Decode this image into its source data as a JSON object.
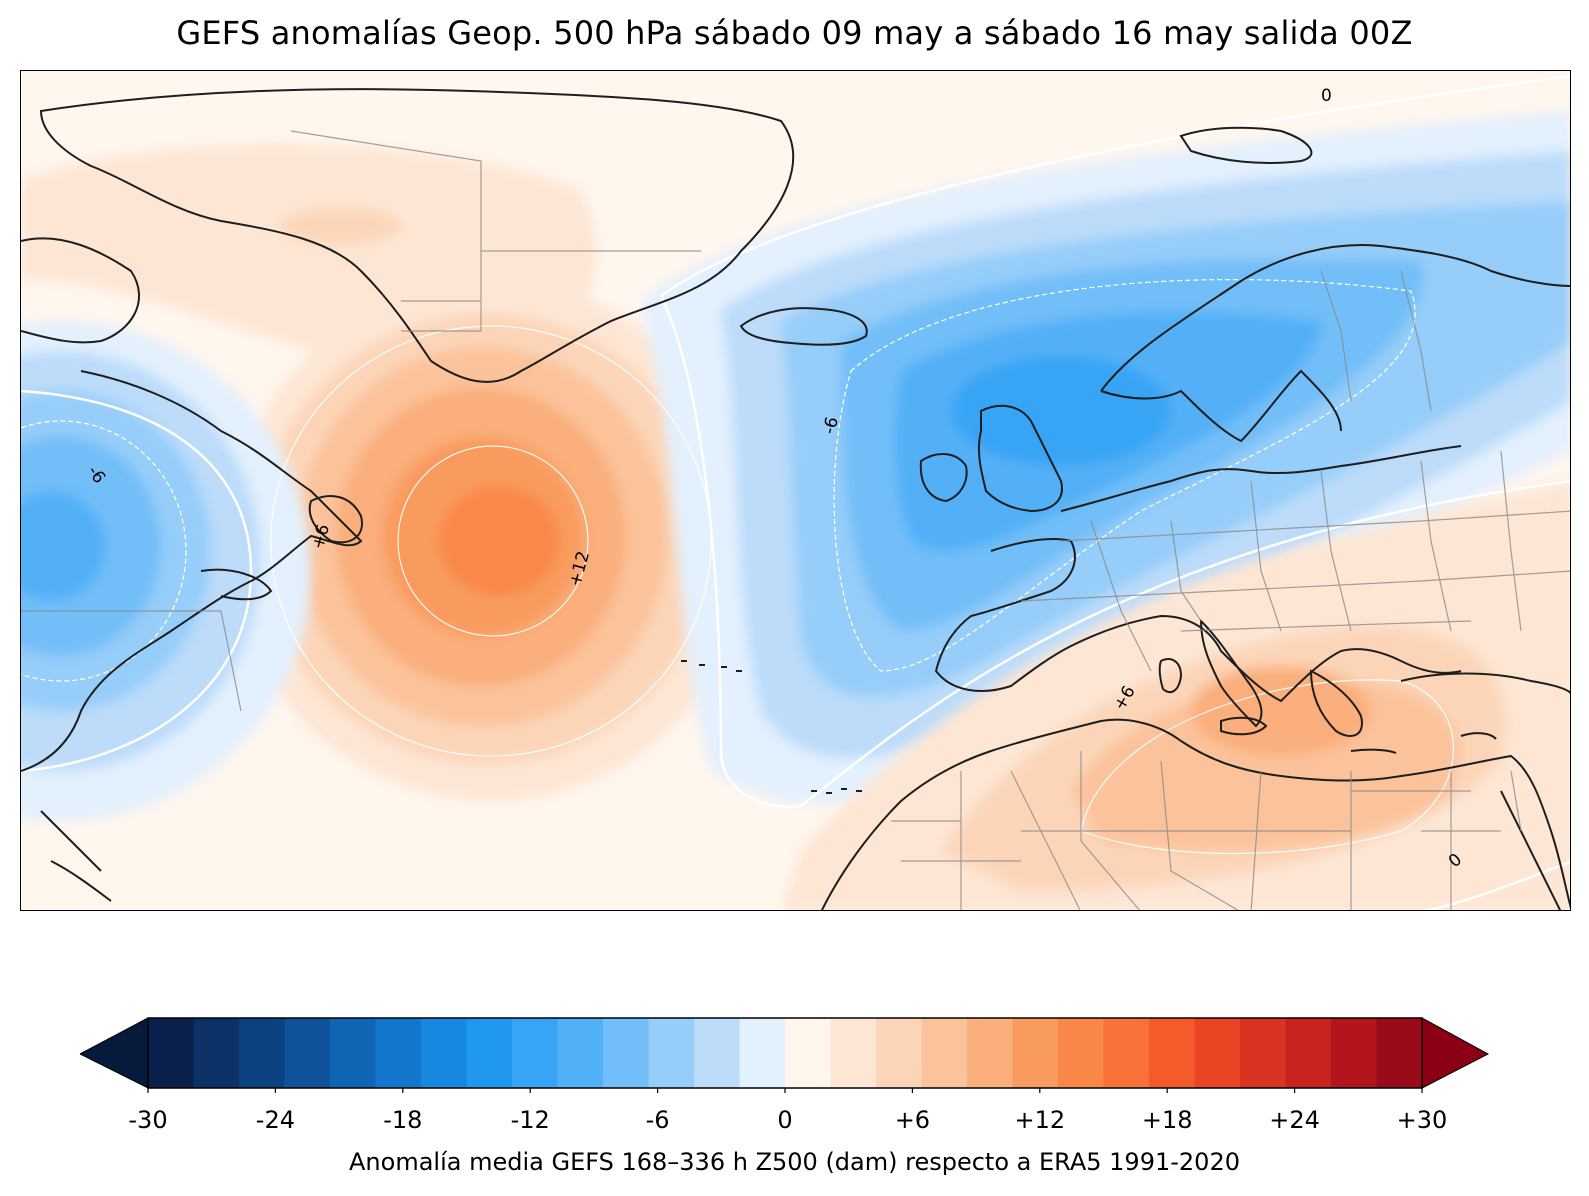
{
  "title": "GEFS anomalías Geop. 500 hPa sábado 09 may a sábado 16 may salida 00Z",
  "map": {
    "variable": "Z500 anomaly (dam)",
    "contour_labels": [
      "0",
      "-6",
      "-6",
      "+6",
      "+12",
      "+6",
      "0"
    ],
    "features": [
      "Greenland",
      "Iceland",
      "Northeast North America",
      "Europe",
      "North Africa",
      "Mediterranean"
    ]
  },
  "colorbar": {
    "min": -30,
    "max": 30,
    "step": 3,
    "extend": "both",
    "tick_labels": [
      "-30",
      "-24",
      "-18",
      "-12",
      "-6",
      "0",
      "+6",
      "+12",
      "+18",
      "+24",
      "+30"
    ],
    "colors": [
      "#08204a",
      "#0b3166",
      "#0d4280",
      "#0e539a",
      "#0f64b4",
      "#1276cc",
      "#1688e0",
      "#2098f0",
      "#37a4f5",
      "#52b0f7",
      "#72bef8",
      "#96cdf9",
      "#bcdcfa",
      "#e3f0fd",
      "#fff6ee",
      "#fde6d4",
      "#fcd5b8",
      "#fbc39b",
      "#faaf7c",
      "#f99b5f",
      "#f98848",
      "#f87136",
      "#f45a2a",
      "#e94525",
      "#d93322",
      "#c8231f",
      "#b3151d",
      "#9a0b1a"
    ],
    "under_color": "#061a3c",
    "over_color": "#8b0014",
    "caption": "Anomalía media GEFS 168–336 h Z500 (dam) respecto a ERA5 1991-2020"
  }
}
